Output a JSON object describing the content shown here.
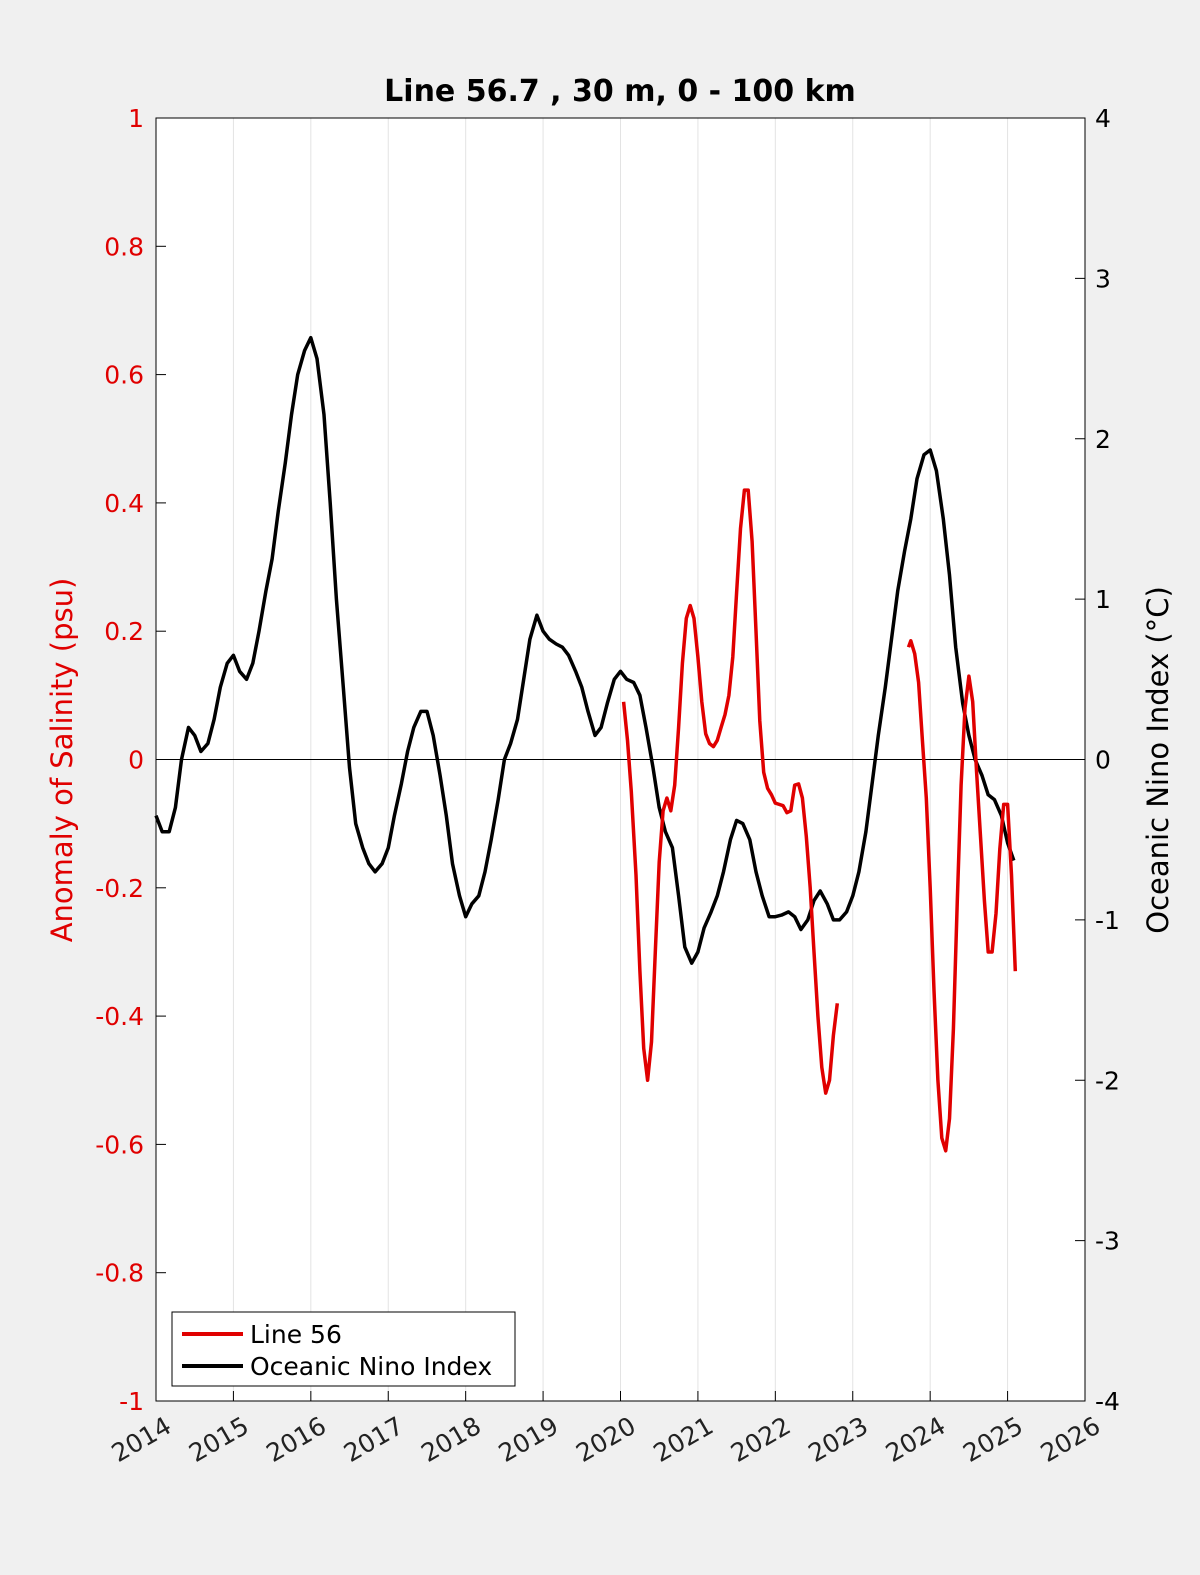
{
  "chart_data": {
    "type": "line",
    "title": "Line 56.7 , 30 m, 0 - 100 km",
    "xlim": [
      2014,
      2026
    ],
    "x_ticks": [
      "2014",
      "2015",
      "2016",
      "2017",
      "2018",
      "2019",
      "2020",
      "2021",
      "2022",
      "2023",
      "2024",
      "2025",
      "2026"
    ],
    "grid": true,
    "legend_position": "bottom-left",
    "left_axis": {
      "label": "Anomaly of Salinity (psu)",
      "ylim": [
        -1,
        1
      ],
      "ticks": [
        "1",
        "0.8",
        "0.6",
        "0.4",
        "0.2",
        "0",
        "-0.2",
        "-0.4",
        "-0.6",
        "-0.8",
        "-1"
      ],
      "color": "#e00000"
    },
    "right_axis": {
      "label": "Oceanic Nino Index (°C)",
      "ylim": [
        -4,
        4
      ],
      "ticks": [
        "4",
        "3",
        "2",
        "1",
        "0",
        "-1",
        "-2",
        "-3",
        "-4"
      ],
      "color": "#000000"
    },
    "series": [
      {
        "name": "Line 56",
        "axis": "left",
        "color": "#e00000",
        "segments": [
          [
            [
              2020.04,
              0.09
            ],
            [
              2020.09,
              0.03
            ],
            [
              2020.14,
              -0.05
            ],
            [
              2020.2,
              -0.18
            ],
            [
              2020.25,
              -0.33
            ],
            [
              2020.3,
              -0.45
            ],
            [
              2020.35,
              -0.5
            ],
            [
              2020.4,
              -0.44
            ],
            [
              2020.45,
              -0.3
            ],
            [
              2020.5,
              -0.16
            ],
            [
              2020.55,
              -0.08
            ],
            [
              2020.6,
              -0.06
            ],
            [
              2020.65,
              -0.08
            ],
            [
              2020.7,
              -0.04
            ],
            [
              2020.75,
              0.05
            ],
            [
              2020.8,
              0.15
            ],
            [
              2020.85,
              0.22
            ],
            [
              2020.9,
              0.24
            ],
            [
              2020.95,
              0.22
            ],
            [
              2021.0,
              0.16
            ],
            [
              2021.05,
              0.09
            ],
            [
              2021.1,
              0.04
            ],
            [
              2021.15,
              0.025
            ],
            [
              2021.2,
              0.02
            ],
            [
              2021.25,
              0.03
            ],
            [
              2021.3,
              0.05
            ],
            [
              2021.35,
              0.07
            ],
            [
              2021.4,
              0.1
            ],
            [
              2021.45,
              0.16
            ],
            [
              2021.5,
              0.26
            ],
            [
              2021.55,
              0.36
            ],
            [
              2021.6,
              0.42
            ],
            [
              2021.65,
              0.42
            ],
            [
              2021.7,
              0.34
            ],
            [
              2021.75,
              0.2
            ],
            [
              2021.8,
              0.06
            ],
            [
              2021.85,
              -0.02
            ],
            [
              2021.9,
              -0.045
            ],
            [
              2021.95,
              -0.055
            ],
            [
              2022.0,
              -0.068
            ],
            [
              2022.05,
              -0.07
            ],
            [
              2022.1,
              -0.072
            ],
            [
              2022.15,
              -0.083
            ],
            [
              2022.2,
              -0.08
            ],
            [
              2022.25,
              -0.04
            ],
            [
              2022.3,
              -0.038
            ],
            [
              2022.35,
              -0.06
            ],
            [
              2022.4,
              -0.12
            ],
            [
              2022.45,
              -0.2
            ],
            [
              2022.5,
              -0.3
            ],
            [
              2022.55,
              -0.4
            ],
            [
              2022.6,
              -0.48
            ],
            [
              2022.65,
              -0.52
            ],
            [
              2022.7,
              -0.5
            ],
            [
              2022.75,
              -0.43
            ],
            [
              2022.8,
              -0.38
            ]
          ],
          [
            [
              2023.72,
              0.175
            ],
            [
              2023.75,
              0.185
            ],
            [
              2023.8,
              0.165
            ],
            [
              2023.85,
              0.12
            ],
            [
              2023.9,
              0.03
            ],
            [
              2023.95,
              -0.06
            ],
            [
              2024.0,
              -0.2
            ],
            [
              2024.05,
              -0.36
            ],
            [
              2024.1,
              -0.5
            ],
            [
              2024.15,
              -0.59
            ],
            [
              2024.2,
              -0.61
            ],
            [
              2024.25,
              -0.56
            ],
            [
              2024.3,
              -0.42
            ],
            [
              2024.35,
              -0.22
            ],
            [
              2024.4,
              -0.04
            ],
            [
              2024.45,
              0.08
            ],
            [
              2024.5,
              0.13
            ],
            [
              2024.55,
              0.09
            ],
            [
              2024.6,
              -0.02
            ],
            [
              2024.65,
              -0.12
            ],
            [
              2024.7,
              -0.22
            ],
            [
              2024.75,
              -0.3
            ],
            [
              2024.8,
              -0.3
            ],
            [
              2024.85,
              -0.24
            ],
            [
              2024.9,
              -0.14
            ],
            [
              2024.95,
              -0.07
            ],
            [
              2025.0,
              -0.07
            ],
            [
              2025.05,
              -0.18
            ],
            [
              2025.1,
              -0.33
            ]
          ]
        ]
      },
      {
        "name": "Oceanic Nino Index",
        "axis": "right",
        "color": "#000000",
        "points": [
          [
            2014.0,
            -0.35
          ],
          [
            2014.08,
            -0.45
          ],
          [
            2014.17,
            -0.45
          ],
          [
            2014.25,
            -0.3
          ],
          [
            2014.33,
            0.0
          ],
          [
            2014.42,
            0.2
          ],
          [
            2014.5,
            0.15
          ],
          [
            2014.58,
            0.05
          ],
          [
            2014.67,
            0.1
          ],
          [
            2014.75,
            0.25
          ],
          [
            2014.83,
            0.45
          ],
          [
            2014.92,
            0.6
          ],
          [
            2015.0,
            0.65
          ],
          [
            2015.08,
            0.55
          ],
          [
            2015.17,
            0.5
          ],
          [
            2015.25,
            0.6
          ],
          [
            2015.33,
            0.8
          ],
          [
            2015.42,
            1.05
          ],
          [
            2015.5,
            1.25
          ],
          [
            2015.58,
            1.55
          ],
          [
            2015.67,
            1.85
          ],
          [
            2015.75,
            2.15
          ],
          [
            2015.83,
            2.4
          ],
          [
            2015.92,
            2.55
          ],
          [
            2016.0,
            2.63
          ],
          [
            2016.08,
            2.5
          ],
          [
            2016.17,
            2.15
          ],
          [
            2016.25,
            1.6
          ],
          [
            2016.33,
            1.0
          ],
          [
            2016.42,
            0.45
          ],
          [
            2016.5,
            -0.05
          ],
          [
            2016.58,
            -0.4
          ],
          [
            2016.67,
            -0.55
          ],
          [
            2016.75,
            -0.65
          ],
          [
            2016.83,
            -0.7
          ],
          [
            2016.92,
            -0.65
          ],
          [
            2017.0,
            -0.55
          ],
          [
            2017.08,
            -0.35
          ],
          [
            2017.17,
            -0.15
          ],
          [
            2017.25,
            0.05
          ],
          [
            2017.33,
            0.2
          ],
          [
            2017.42,
            0.3
          ],
          [
            2017.5,
            0.3
          ],
          [
            2017.58,
            0.15
          ],
          [
            2017.67,
            -0.1
          ],
          [
            2017.75,
            -0.35
          ],
          [
            2017.83,
            -0.65
          ],
          [
            2017.92,
            -0.85
          ],
          [
            2018.0,
            -0.98
          ],
          [
            2018.08,
            -0.9
          ],
          [
            2018.17,
            -0.85
          ],
          [
            2018.25,
            -0.7
          ],
          [
            2018.33,
            -0.5
          ],
          [
            2018.42,
            -0.25
          ],
          [
            2018.5,
            0.0
          ],
          [
            2018.58,
            0.1
          ],
          [
            2018.67,
            0.25
          ],
          [
            2018.75,
            0.5
          ],
          [
            2018.83,
            0.75
          ],
          [
            2018.92,
            0.9
          ],
          [
            2019.0,
            0.8
          ],
          [
            2019.08,
            0.75
          ],
          [
            2019.17,
            0.72
          ],
          [
            2019.25,
            0.7
          ],
          [
            2019.33,
            0.65
          ],
          [
            2019.42,
            0.55
          ],
          [
            2019.5,
            0.45
          ],
          [
            2019.58,
            0.3
          ],
          [
            2019.67,
            0.15
          ],
          [
            2019.75,
            0.2
          ],
          [
            2019.83,
            0.35
          ],
          [
            2019.92,
            0.5
          ],
          [
            2020.0,
            0.55
          ],
          [
            2020.08,
            0.5
          ],
          [
            2020.17,
            0.48
          ],
          [
            2020.25,
            0.4
          ],
          [
            2020.33,
            0.2
          ],
          [
            2020.42,
            -0.05
          ],
          [
            2020.5,
            -0.3
          ],
          [
            2020.58,
            -0.45
          ],
          [
            2020.67,
            -0.55
          ],
          [
            2020.75,
            -0.85
          ],
          [
            2020.83,
            -1.17
          ],
          [
            2020.92,
            -1.27
          ],
          [
            2021.0,
            -1.2
          ],
          [
            2021.08,
            -1.05
          ],
          [
            2021.17,
            -0.95
          ],
          [
            2021.25,
            -0.85
          ],
          [
            2021.33,
            -0.7
          ],
          [
            2021.42,
            -0.5
          ],
          [
            2021.5,
            -0.38
          ],
          [
            2021.58,
            -0.4
          ],
          [
            2021.67,
            -0.5
          ],
          [
            2021.75,
            -0.7
          ],
          [
            2021.83,
            -0.85
          ],
          [
            2021.92,
            -0.98
          ],
          [
            2022.0,
            -0.98
          ],
          [
            2022.08,
            -0.97
          ],
          [
            2022.17,
            -0.95
          ],
          [
            2022.25,
            -0.98
          ],
          [
            2022.33,
            -1.06
          ],
          [
            2022.42,
            -1.0
          ],
          [
            2022.5,
            -0.88
          ],
          [
            2022.58,
            -0.82
          ],
          [
            2022.67,
            -0.9
          ],
          [
            2022.75,
            -1.0
          ],
          [
            2022.83,
            -1.0
          ],
          [
            2022.92,
            -0.95
          ],
          [
            2023.0,
            -0.85
          ],
          [
            2023.08,
            -0.7
          ],
          [
            2023.17,
            -0.45
          ],
          [
            2023.25,
            -0.15
          ],
          [
            2023.33,
            0.15
          ],
          [
            2023.42,
            0.45
          ],
          [
            2023.5,
            0.75
          ],
          [
            2023.58,
            1.05
          ],
          [
            2023.67,
            1.3
          ],
          [
            2023.75,
            1.5
          ],
          [
            2023.83,
            1.75
          ],
          [
            2023.92,
            1.9
          ],
          [
            2024.0,
            1.93
          ],
          [
            2024.08,
            1.8
          ],
          [
            2024.17,
            1.5
          ],
          [
            2024.25,
            1.15
          ],
          [
            2024.33,
            0.7
          ],
          [
            2024.42,
            0.35
          ],
          [
            2024.5,
            0.15
          ],
          [
            2024.58,
            0.0
          ],
          [
            2024.67,
            -0.1
          ],
          [
            2024.75,
            -0.22
          ],
          [
            2024.83,
            -0.25
          ],
          [
            2024.92,
            -0.35
          ],
          [
            2025.0,
            -0.52
          ],
          [
            2025.08,
            -0.63
          ]
        ]
      }
    ]
  }
}
